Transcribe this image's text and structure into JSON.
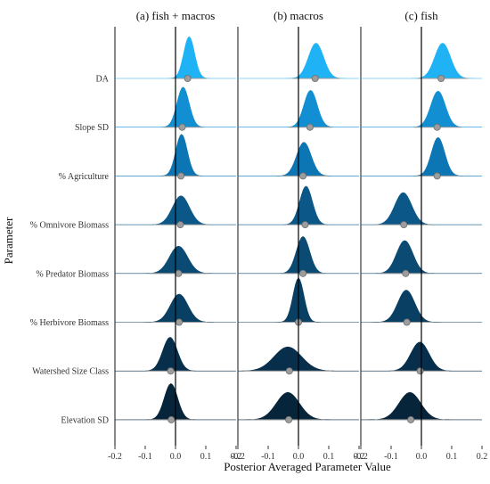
{
  "chart_data": {
    "type": "area",
    "xlabel": "Posterior Averaged Parameter Value",
    "ylabel": "Parameter",
    "xlim": [
      -0.2,
      0.2
    ],
    "x_ticks": [
      "-0.2",
      "-0.1",
      "0.0",
      "0.1",
      "0.2"
    ],
    "parameters": [
      "DA",
      "Slope SD",
      "% Agriculture",
      "% Omnivore Biomass",
      "% Predator Biomass",
      "% Herbivore Biomass",
      "Watershed Size Class",
      "Elevation SD"
    ],
    "colors": [
      "#1fb3f5",
      "#128fd3",
      "#0c75b3",
      "#0b5888",
      "#0a4a73",
      "#093f63",
      "#072f4c",
      "#06243a"
    ],
    "panels": [
      {
        "title": "(a) fish + macros",
        "series": [
          {
            "parameter": "DA",
            "mean": 0.045,
            "sd": 0.018,
            "peak": 0.52,
            "point": 0.04
          },
          {
            "parameter": "Slope SD",
            "mean": 0.025,
            "sd": 0.02,
            "peak": 0.5,
            "point": 0.022
          },
          {
            "parameter": "% Agriculture",
            "mean": 0.02,
            "sd": 0.019,
            "peak": 0.52,
            "point": 0.018
          },
          {
            "parameter": "% Omnivore Biomass",
            "mean": 0.018,
            "sd": 0.028,
            "peak": 0.36,
            "point": 0.016
          },
          {
            "parameter": "% Predator Biomass",
            "mean": 0.01,
            "sd": 0.03,
            "peak": 0.34,
            "point": 0.01
          },
          {
            "parameter": "% Herbivore Biomass",
            "mean": 0.012,
            "sd": 0.029,
            "peak": 0.35,
            "point": 0.012
          },
          {
            "parameter": "Watershed Size Class",
            "mean": -0.018,
            "sd": 0.024,
            "peak": 0.42,
            "point": -0.016
          },
          {
            "parameter": "Elevation SD",
            "mean": -0.015,
            "sd": 0.022,
            "peak": 0.45,
            "point": -0.014
          }
        ]
      },
      {
        "title": "(b) macros",
        "series": [
          {
            "parameter": "DA",
            "mean": 0.058,
            "sd": 0.025,
            "peak": 0.44,
            "point": 0.055
          },
          {
            "parameter": "Slope SD",
            "mean": 0.04,
            "sd": 0.022,
            "peak": 0.46,
            "point": 0.038
          },
          {
            "parameter": "% Agriculture",
            "mean": 0.018,
            "sd": 0.024,
            "peak": 0.42,
            "point": 0.015
          },
          {
            "parameter": "% Omnivore Biomass",
            "mean": 0.025,
            "sd": 0.021,
            "peak": 0.48,
            "point": 0.022
          },
          {
            "parameter": "% Predator Biomass",
            "mean": 0.015,
            "sd": 0.022,
            "peak": 0.46,
            "point": 0.015
          },
          {
            "parameter": "% Herbivore Biomass",
            "mean": 0.0,
            "sd": 0.018,
            "peak": 0.55,
            "point": 0.0
          },
          {
            "parameter": "Watershed Size Class",
            "mean": -0.035,
            "sd": 0.045,
            "peak": 0.3,
            "point": -0.03
          },
          {
            "parameter": "Elevation SD",
            "mean": -0.035,
            "sd": 0.038,
            "peak": 0.34,
            "point": -0.032
          }
        ]
      },
      {
        "title": "(c) fish",
        "series": [
          {
            "parameter": "DA",
            "mean": 0.07,
            "sd": 0.026,
            "peak": 0.44,
            "point": 0.065
          },
          {
            "parameter": "Slope SD",
            "mean": 0.055,
            "sd": 0.024,
            "peak": 0.45,
            "point": 0.052
          },
          {
            "parameter": "% Agriculture",
            "mean": 0.055,
            "sd": 0.022,
            "peak": 0.48,
            "point": 0.052
          },
          {
            "parameter": "% Omnivore Biomass",
            "mean": -0.06,
            "sd": 0.028,
            "peak": 0.4,
            "point": -0.058
          },
          {
            "parameter": "% Predator Biomass",
            "mean": -0.055,
            "sd": 0.027,
            "peak": 0.41,
            "point": -0.052
          },
          {
            "parameter": "% Herbivore Biomass",
            "mean": -0.05,
            "sd": 0.028,
            "peak": 0.4,
            "point": -0.048
          },
          {
            "parameter": "Watershed Size Class",
            "mean": -0.005,
            "sd": 0.03,
            "peak": 0.36,
            "point": -0.004
          },
          {
            "parameter": "Elevation SD",
            "mean": -0.038,
            "sd": 0.036,
            "peak": 0.34,
            "point": -0.035
          }
        ]
      }
    ]
  }
}
